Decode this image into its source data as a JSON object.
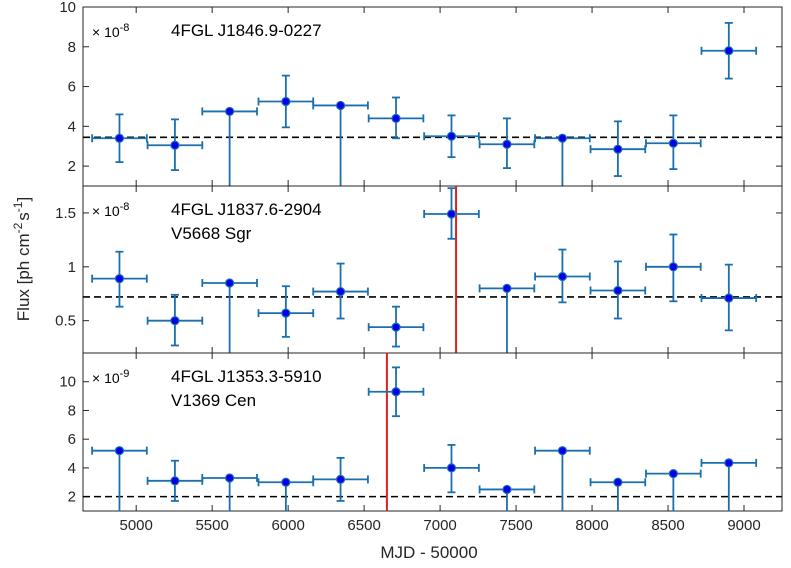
{
  "chart_data": [
    {
      "type": "scatter",
      "panel": "top",
      "source_name": "4FGL J1846.9-0227",
      "nova_name": "",
      "scale_label": "× 10",
      "scale_exponent": "-8",
      "ylim": [
        1,
        10
      ],
      "yticks": [
        2,
        4,
        6,
        8,
        10
      ],
      "ytick_labels": [
        "2",
        "4",
        "6",
        "8",
        "10"
      ],
      "mean_flux": 3.45,
      "nova_mjd": null,
      "points": [
        {
          "x": 4890,
          "xerr": 180,
          "y": 3.4,
          "ylo": 2.2,
          "yhi": 4.6
        },
        {
          "x": 5255,
          "xerr": 180,
          "y": 3.05,
          "ylo": 1.8,
          "yhi": 4.35
        },
        {
          "x": 5615,
          "xerr": 180,
          "y": 4.75,
          "ylo": 1.0,
          "yhi": 4.75
        },
        {
          "x": 5985,
          "xerr": 180,
          "y": 5.25,
          "ylo": 3.95,
          "yhi": 6.55
        },
        {
          "x": 6345,
          "xerr": 180,
          "y": 5.05,
          "ylo": 1.0,
          "yhi": 5.05
        },
        {
          "x": 6710,
          "xerr": 180,
          "y": 4.4,
          "ylo": 3.4,
          "yhi": 5.45
        },
        {
          "x": 7075,
          "xerr": 180,
          "y": 3.5,
          "ylo": 2.45,
          "yhi": 4.55
        },
        {
          "x": 7440,
          "xerr": 180,
          "y": 3.1,
          "ylo": 1.9,
          "yhi": 4.4
        },
        {
          "x": 7805,
          "xerr": 180,
          "y": 3.4,
          "ylo": 1.0,
          "yhi": 3.4
        },
        {
          "x": 8170,
          "xerr": 180,
          "y": 2.85,
          "ylo": 1.5,
          "yhi": 4.25
        },
        {
          "x": 8535,
          "xerr": 180,
          "y": 3.15,
          "ylo": 1.85,
          "yhi": 4.55
        },
        {
          "x": 8900,
          "xerr": 180,
          "y": 7.8,
          "ylo": 6.4,
          "yhi": 9.2
        }
      ]
    },
    {
      "type": "scatter",
      "panel": "middle",
      "source_name": "4FGL J1837.6-2904",
      "nova_name": "V5668 Sgr",
      "scale_label": "× 10",
      "scale_exponent": "-8",
      "ylim": [
        0.2,
        1.75
      ],
      "yticks": [
        0.5,
        1,
        1.5
      ],
      "ytick_labels": [
        "0.5",
        "1",
        "1.5"
      ],
      "mean_flux": 0.72,
      "nova_mjd": 7105,
      "points": [
        {
          "x": 4890,
          "xerr": 180,
          "y": 0.89,
          "ylo": 0.63,
          "yhi": 1.14
        },
        {
          "x": 5255,
          "xerr": 180,
          "y": 0.5,
          "ylo": 0.27,
          "yhi": 0.74
        },
        {
          "x": 5615,
          "xerr": 180,
          "y": 0.85,
          "ylo": 0.2,
          "yhi": 0.85
        },
        {
          "x": 5985,
          "xerr": 180,
          "y": 0.57,
          "ylo": 0.35,
          "yhi": 0.82
        },
        {
          "x": 6345,
          "xerr": 180,
          "y": 0.77,
          "ylo": 0.52,
          "yhi": 1.03
        },
        {
          "x": 6710,
          "xerr": 180,
          "y": 0.44,
          "ylo": 0.26,
          "yhi": 0.63
        },
        {
          "x": 7075,
          "xerr": 180,
          "y": 1.49,
          "ylo": 1.26,
          "yhi": 1.73
        },
        {
          "x": 7440,
          "xerr": 180,
          "y": 0.8,
          "ylo": 0.2,
          "yhi": 0.8
        },
        {
          "x": 7805,
          "xerr": 180,
          "y": 0.91,
          "ylo": 0.67,
          "yhi": 1.16
        },
        {
          "x": 8170,
          "xerr": 180,
          "y": 0.78,
          "ylo": 0.52,
          "yhi": 1.05
        },
        {
          "x": 8535,
          "xerr": 180,
          "y": 1.0,
          "ylo": 0.68,
          "yhi": 1.3
        },
        {
          "x": 8900,
          "xerr": 180,
          "y": 0.71,
          "ylo": 0.41,
          "yhi": 1.02
        }
      ]
    },
    {
      "type": "scatter",
      "panel": "bottom",
      "source_name": "4FGL J1353.3-5910",
      "nova_name": "V1369 Cen",
      "scale_label": "× 10",
      "scale_exponent": "-9",
      "ylim": [
        1,
        12
      ],
      "yticks": [
        2,
        4,
        6,
        8,
        10
      ],
      "ytick_labels": [
        "2",
        "4",
        "6",
        "8",
        "10"
      ],
      "mean_flux": 2.0,
      "nova_mjd": 6650,
      "points": [
        {
          "x": 4890,
          "xerr": 180,
          "y": 5.2,
          "ylo": 1.0,
          "yhi": 5.2
        },
        {
          "x": 5255,
          "xerr": 180,
          "y": 3.1,
          "ylo": 1.7,
          "yhi": 4.5
        },
        {
          "x": 5615,
          "xerr": 180,
          "y": 3.3,
          "ylo": 1.0,
          "yhi": 3.3
        },
        {
          "x": 5985,
          "xerr": 180,
          "y": 3.0,
          "ylo": 1.0,
          "yhi": 3.0
        },
        {
          "x": 6345,
          "xerr": 180,
          "y": 3.2,
          "ylo": 1.7,
          "yhi": 4.7
        },
        {
          "x": 6710,
          "xerr": 180,
          "y": 9.3,
          "ylo": 7.6,
          "yhi": 11.0
        },
        {
          "x": 7075,
          "xerr": 180,
          "y": 4.0,
          "ylo": 2.3,
          "yhi": 5.6
        },
        {
          "x": 7440,
          "xerr": 180,
          "y": 2.5,
          "ylo": 1.0,
          "yhi": 2.5
        },
        {
          "x": 7805,
          "xerr": 180,
          "y": 5.2,
          "ylo": 1.0,
          "yhi": 5.2
        },
        {
          "x": 8170,
          "xerr": 180,
          "y": 3.0,
          "ylo": 1.0,
          "yhi": 3.0
        },
        {
          "x": 8535,
          "xerr": 180,
          "y": 3.6,
          "ylo": 1.0,
          "yhi": 3.6
        },
        {
          "x": 8900,
          "xerr": 180,
          "y": 4.35,
          "ylo": 1.0,
          "yhi": 4.35
        }
      ]
    }
  ],
  "shared": {
    "xlabel": "MJD - 50000",
    "ylabel_main": "Flux [ph cm",
    "ylabel_exp1": "-2",
    "ylabel_s": "s",
    "ylabel_exp2": "-1",
    "ylabel_close": "]",
    "xlim": [
      4650,
      9250
    ],
    "xticks": [
      5000,
      5500,
      6000,
      6500,
      7000,
      7500,
      8000,
      8500,
      9000
    ],
    "xtick_labels": [
      "5000",
      "5500",
      "6000",
      "6500",
      "7000",
      "7500",
      "8000",
      "8500",
      "9000"
    ]
  },
  "colors": {
    "errorbar": "#1a6fae",
    "marker_fill": "#0000ee",
    "marker_edge": "#1a6fae",
    "mean_line": "#000000",
    "nova_line": "#e02020",
    "axis": "#262626"
  }
}
